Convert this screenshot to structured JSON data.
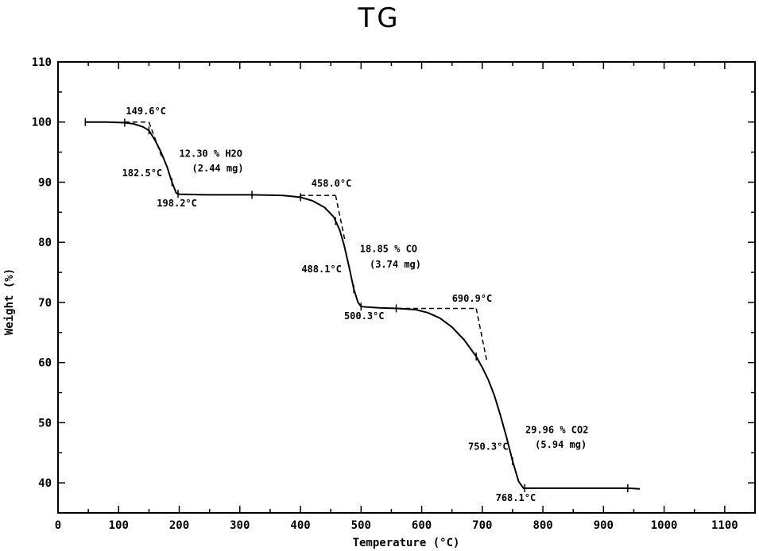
{
  "chart_data": {
    "type": "line",
    "title": "TG",
    "xlabel": "Temperature (°C)",
    "ylabel": "Weight (%)",
    "xlim": [
      0,
      1150
    ],
    "ylim": [
      35,
      110
    ],
    "xticks": [
      0,
      100,
      200,
      300,
      400,
      500,
      600,
      700,
      800,
      900,
      1000,
      1100
    ],
    "yticks": [
      40,
      50,
      60,
      70,
      80,
      90,
      100,
      110
    ],
    "grid": false,
    "series": [
      {
        "x": [
          45,
          80,
          110,
          125,
          140,
          150,
          160,
          170,
          180,
          188,
          195,
          200,
          250,
          320,
          370,
          400,
          420,
          440,
          455,
          465,
          472,
          480,
          488,
          495,
          500,
          530,
          560,
          590,
          610,
          630,
          650,
          670,
          690,
          700,
          710,
          720,
          730,
          740,
          750,
          760,
          768,
          800,
          850,
          900,
          940,
          960
        ],
        "y": [
          100,
          100,
          99.9,
          99.7,
          99.2,
          98.6,
          97,
          95,
          92.5,
          90,
          88.2,
          88,
          87.9,
          87.9,
          87.8,
          87.5,
          86.9,
          85.8,
          84.2,
          82,
          79.5,
          76,
          72.2,
          70,
          69.3,
          69.1,
          69,
          68.8,
          68.3,
          67.4,
          65.9,
          63.8,
          61,
          59.2,
          57.1,
          54.5,
          51.2,
          47.6,
          43.6,
          40.2,
          39.1,
          39.1,
          39.1,
          39.1,
          39.1,
          39
        ]
      }
    ],
    "markers": {
      "x": [
        45,
        110,
        150,
        188,
        198,
        320,
        400,
        458,
        488,
        500,
        558,
        690,
        750,
        770,
        940
      ]
    },
    "onset_lines": [
      {
        "x": [
          110,
          150
        ],
        "y": [
          100,
          100
        ]
      },
      {
        "x": [
          150,
          172
        ],
        "y": [
          100,
          94
        ]
      },
      {
        "x": [
          400,
          458
        ],
        "y": [
          87.8,
          87.8
        ]
      },
      {
        "x": [
          458,
          474
        ],
        "y": [
          87.8,
          80
        ]
      },
      {
        "x": [
          560,
          690
        ],
        "y": [
          69,
          69
        ]
      },
      {
        "x": [
          690,
          708
        ],
        "y": [
          69,
          60
        ]
      }
    ],
    "annotations": [
      {
        "text": "149.6°C",
        "x": 112,
        "y": 101.3,
        "anchor": "start"
      },
      {
        "text": "12.30 % H2O",
        "x": 200,
        "y": 94.2,
        "anchor": "start"
      },
      {
        "text": "(2.44 mg)",
        "x": 221,
        "y": 91.8,
        "anchor": "start"
      },
      {
        "text": "182.5°C",
        "x": 172,
        "y": 91,
        "anchor": "end"
      },
      {
        "text": "198.2°C",
        "x": 163,
        "y": 86,
        "anchor": "start"
      },
      {
        "text": "458.0°C",
        "x": 418,
        "y": 89.3,
        "anchor": "start"
      },
      {
        "text": "18.85 % CO",
        "x": 498,
        "y": 78.4,
        "anchor": "start"
      },
      {
        "text": "(3.74 mg)",
        "x": 514,
        "y": 75.8,
        "anchor": "start"
      },
      {
        "text": "488.1°C",
        "x": 468,
        "y": 75,
        "anchor": "end"
      },
      {
        "text": "500.3°C",
        "x": 472,
        "y": 67.2,
        "anchor": "start"
      },
      {
        "text": "690.9°C",
        "x": 650,
        "y": 70.1,
        "anchor": "start"
      },
      {
        "text": "29.96 % CO2",
        "x": 771,
        "y": 48.3,
        "anchor": "start"
      },
      {
        "text": "(5.94 mg)",
        "x": 787,
        "y": 45.8,
        "anchor": "start"
      },
      {
        "text": "750.3°C",
        "x": 743,
        "y": 45.5,
        "anchor": "end"
      },
      {
        "text": "768.1°C",
        "x": 722,
        "y": 37,
        "anchor": "start"
      }
    ]
  }
}
